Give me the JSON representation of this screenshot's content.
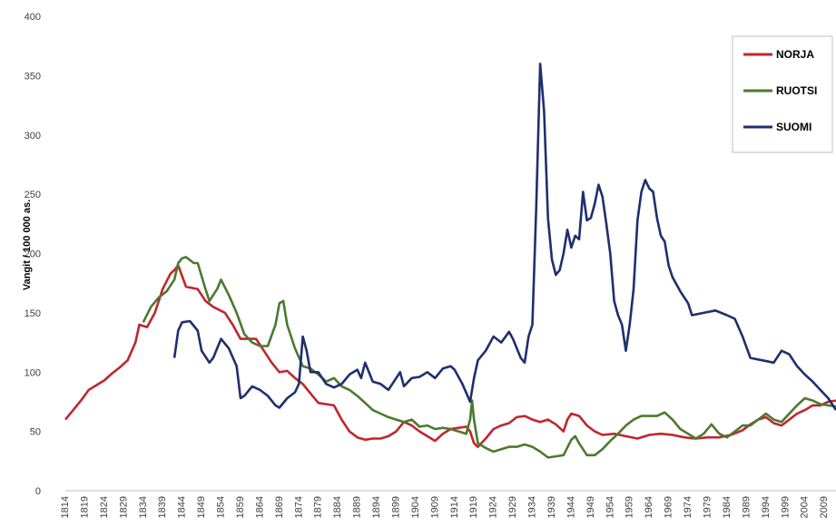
{
  "chart_data": {
    "type": "line",
    "ylabel": "Vangit / 100 000 as.",
    "xlabel": "",
    "ylim": [
      0,
      400
    ],
    "yticks": [
      0,
      50,
      100,
      150,
      200,
      250,
      300,
      350,
      400
    ],
    "xlim": [
      1814,
      2012
    ],
    "xticks": [
      1814,
      1819,
      1824,
      1829,
      1834,
      1839,
      1844,
      1849,
      1854,
      1859,
      1864,
      1869,
      1874,
      1879,
      1884,
      1889,
      1894,
      1899,
      1904,
      1909,
      1914,
      1919,
      1924,
      1929,
      1934,
      1939,
      1944,
      1949,
      1954,
      1959,
      1964,
      1969,
      1974,
      1979,
      1984,
      1989,
      1994,
      1999,
      2004,
      2009
    ],
    "grid": false,
    "legend_position": "top-right",
    "series": [
      {
        "name": "NORJA",
        "color": "#c0262d",
        "points": [
          [
            1814,
            60
          ],
          [
            1816,
            68
          ],
          [
            1818,
            76
          ],
          [
            1820,
            85
          ],
          [
            1822,
            89
          ],
          [
            1824,
            93
          ],
          [
            1826,
            99
          ],
          [
            1828,
            104
          ],
          [
            1830,
            110
          ],
          [
            1832,
            125
          ],
          [
            1833,
            140
          ],
          [
            1835,
            138
          ],
          [
            1837,
            150
          ],
          [
            1839,
            170
          ],
          [
            1841,
            183
          ],
          [
            1842,
            186
          ],
          [
            1843,
            190
          ],
          [
            1845,
            172
          ],
          [
            1848,
            170
          ],
          [
            1850,
            160
          ],
          [
            1852,
            155
          ],
          [
            1855,
            150
          ],
          [
            1857,
            140
          ],
          [
            1859,
            128
          ],
          [
            1861,
            128
          ],
          [
            1863,
            128
          ],
          [
            1865,
            118
          ],
          [
            1867,
            108
          ],
          [
            1869,
            100
          ],
          [
            1871,
            101
          ],
          [
            1873,
            95
          ],
          [
            1875,
            90
          ],
          [
            1877,
            82
          ],
          [
            1879,
            74
          ],
          [
            1881,
            73
          ],
          [
            1883,
            72
          ],
          [
            1885,
            60
          ],
          [
            1887,
            50
          ],
          [
            1889,
            45
          ],
          [
            1891,
            43
          ],
          [
            1893,
            44
          ],
          [
            1895,
            44
          ],
          [
            1897,
            46
          ],
          [
            1899,
            50
          ],
          [
            1901,
            58
          ],
          [
            1903,
            55
          ],
          [
            1905,
            50
          ],
          [
            1907,
            46
          ],
          [
            1909,
            42
          ],
          [
            1911,
            48
          ],
          [
            1913,
            52
          ],
          [
            1915,
            53
          ],
          [
            1917,
            54
          ],
          [
            1918,
            50
          ],
          [
            1919,
            40
          ],
          [
            1920,
            37
          ],
          [
            1922,
            44
          ],
          [
            1924,
            52
          ],
          [
            1926,
            55
          ],
          [
            1928,
            57
          ],
          [
            1930,
            62
          ],
          [
            1932,
            63
          ],
          [
            1934,
            60
          ],
          [
            1936,
            58
          ],
          [
            1938,
            60
          ],
          [
            1940,
            56
          ],
          [
            1942,
            50
          ],
          [
            1943,
            60
          ],
          [
            1944,
            65
          ],
          [
            1946,
            63
          ],
          [
            1948,
            55
          ],
          [
            1950,
            50
          ],
          [
            1952,
            47
          ],
          [
            1955,
            48
          ],
          [
            1958,
            46
          ],
          [
            1961,
            44
          ],
          [
            1964,
            47
          ],
          [
            1967,
            48
          ],
          [
            1970,
            47
          ],
          [
            1973,
            45
          ],
          [
            1976,
            44
          ],
          [
            1979,
            45
          ],
          [
            1982,
            45
          ],
          [
            1985,
            47
          ],
          [
            1988,
            51
          ],
          [
            1990,
            56
          ],
          [
            1992,
            60
          ],
          [
            1994,
            62
          ],
          [
            1996,
            57
          ],
          [
            1998,
            55
          ],
          [
            2000,
            60
          ],
          [
            2002,
            65
          ],
          [
            2004,
            68
          ],
          [
            2006,
            72
          ],
          [
            2008,
            72
          ],
          [
            2010,
            75
          ],
          [
            2012,
            76
          ]
        ]
      },
      {
        "name": "RUOTSI",
        "color": "#4a7a2e",
        "points": [
          [
            1834,
            142
          ],
          [
            1836,
            155
          ],
          [
            1838,
            163
          ],
          [
            1840,
            168
          ],
          [
            1842,
            178
          ],
          [
            1843,
            192
          ],
          [
            1844,
            196
          ],
          [
            1845,
            197
          ],
          [
            1847,
            192
          ],
          [
            1848,
            192
          ],
          [
            1850,
            170
          ],
          [
            1851,
            160
          ],
          [
            1853,
            170
          ],
          [
            1854,
            178
          ],
          [
            1856,
            165
          ],
          [
            1858,
            150
          ],
          [
            1860,
            132
          ],
          [
            1862,
            125
          ],
          [
            1864,
            122
          ],
          [
            1866,
            122
          ],
          [
            1868,
            140
          ],
          [
            1869,
            158
          ],
          [
            1870,
            160
          ],
          [
            1871,
            140
          ],
          [
            1873,
            120
          ],
          [
            1875,
            105
          ],
          [
            1877,
            103
          ],
          [
            1879,
            98
          ],
          [
            1881,
            92
          ],
          [
            1883,
            95
          ],
          [
            1885,
            88
          ],
          [
            1887,
            85
          ],
          [
            1889,
            80
          ],
          [
            1891,
            74
          ],
          [
            1893,
            68
          ],
          [
            1895,
            65
          ],
          [
            1897,
            62
          ],
          [
            1899,
            60
          ],
          [
            1901,
            58
          ],
          [
            1903,
            60
          ],
          [
            1905,
            54
          ],
          [
            1907,
            55
          ],
          [
            1909,
            52
          ],
          [
            1911,
            53
          ],
          [
            1913,
            52
          ],
          [
            1915,
            50
          ],
          [
            1917,
            48
          ],
          [
            1918,
            60
          ],
          [
            1918.5,
            76
          ],
          [
            1919,
            60
          ],
          [
            1920,
            40
          ],
          [
            1922,
            36
          ],
          [
            1924,
            33
          ],
          [
            1926,
            35
          ],
          [
            1928,
            37
          ],
          [
            1930,
            37
          ],
          [
            1932,
            39
          ],
          [
            1934,
            37
          ],
          [
            1936,
            33
          ],
          [
            1938,
            28
          ],
          [
            1940,
            29
          ],
          [
            1942,
            30
          ],
          [
            1944,
            43
          ],
          [
            1945,
            46
          ],
          [
            1946,
            40
          ],
          [
            1948,
            30
          ],
          [
            1950,
            30
          ],
          [
            1952,
            35
          ],
          [
            1954,
            42
          ],
          [
            1956,
            48
          ],
          [
            1958,
            55
          ],
          [
            1960,
            60
          ],
          [
            1962,
            63
          ],
          [
            1964,
            63
          ],
          [
            1966,
            63
          ],
          [
            1968,
            66
          ],
          [
            1970,
            60
          ],
          [
            1972,
            52
          ],
          [
            1974,
            48
          ],
          [
            1976,
            44
          ],
          [
            1978,
            48
          ],
          [
            1980,
            56
          ],
          [
            1982,
            48
          ],
          [
            1984,
            45
          ],
          [
            1986,
            50
          ],
          [
            1988,
            55
          ],
          [
            1990,
            55
          ],
          [
            1992,
            60
          ],
          [
            1994,
            65
          ],
          [
            1996,
            60
          ],
          [
            1998,
            58
          ],
          [
            2000,
            65
          ],
          [
            2002,
            72
          ],
          [
            2004,
            78
          ],
          [
            2006,
            76
          ],
          [
            2008,
            73
          ],
          [
            2010,
            72
          ],
          [
            2012,
            71
          ]
        ]
      },
      {
        "name": "SUOMI",
        "color": "#1f2f6e",
        "points": [
          [
            1842,
            112
          ],
          [
            1843,
            135
          ],
          [
            1844,
            142
          ],
          [
            1846,
            143
          ],
          [
            1848,
            135
          ],
          [
            1849,
            118
          ],
          [
            1851,
            108
          ],
          [
            1852,
            112
          ],
          [
            1854,
            128
          ],
          [
            1856,
            120
          ],
          [
            1858,
            105
          ],
          [
            1859,
            78
          ],
          [
            1860,
            80
          ],
          [
            1862,
            88
          ],
          [
            1864,
            85
          ],
          [
            1866,
            80
          ],
          [
            1868,
            72
          ],
          [
            1869,
            70
          ],
          [
            1871,
            78
          ],
          [
            1873,
            83
          ],
          [
            1874,
            90
          ],
          [
            1875,
            130
          ],
          [
            1876,
            118
          ],
          [
            1877,
            100
          ],
          [
            1879,
            100
          ],
          [
            1881,
            90
          ],
          [
            1883,
            87
          ],
          [
            1885,
            90
          ],
          [
            1887,
            98
          ],
          [
            1889,
            102
          ],
          [
            1890,
            95
          ],
          [
            1891,
            108
          ],
          [
            1893,
            92
          ],
          [
            1895,
            90
          ],
          [
            1897,
            85
          ],
          [
            1899,
            95
          ],
          [
            1900,
            100
          ],
          [
            1901,
            88
          ],
          [
            1903,
            95
          ],
          [
            1905,
            96
          ],
          [
            1907,
            100
          ],
          [
            1909,
            95
          ],
          [
            1911,
            103
          ],
          [
            1913,
            105
          ],
          [
            1914,
            102
          ],
          [
            1916,
            90
          ],
          [
            1918,
            75
          ],
          [
            1919,
            95
          ],
          [
            1920,
            110
          ],
          [
            1922,
            118
          ],
          [
            1924,
            130
          ],
          [
            1926,
            125
          ],
          [
            1928,
            134
          ],
          [
            1929,
            128
          ],
          [
            1931,
            112
          ],
          [
            1932,
            108
          ],
          [
            1933,
            130
          ],
          [
            1934,
            140
          ],
          [
            1935,
            240
          ],
          [
            1936,
            360
          ],
          [
            1937,
            320
          ],
          [
            1938,
            230
          ],
          [
            1939,
            195
          ],
          [
            1940,
            182
          ],
          [
            1941,
            186
          ],
          [
            1942,
            200
          ],
          [
            1943,
            220
          ],
          [
            1944,
            205
          ],
          [
            1945,
            215
          ],
          [
            1946,
            212
          ],
          [
            1947,
            252
          ],
          [
            1948,
            228
          ],
          [
            1949,
            230
          ],
          [
            1950,
            242
          ],
          [
            1951,
            258
          ],
          [
            1952,
            248
          ],
          [
            1953,
            225
          ],
          [
            1954,
            200
          ],
          [
            1955,
            160
          ],
          [
            1956,
            148
          ],
          [
            1957,
            140
          ],
          [
            1958,
            118
          ],
          [
            1959,
            140
          ],
          [
            1960,
            170
          ],
          [
            1961,
            228
          ],
          [
            1962,
            252
          ],
          [
            1963,
            262
          ],
          [
            1964,
            255
          ],
          [
            1965,
            252
          ],
          [
            1966,
            230
          ],
          [
            1967,
            215
          ],
          [
            1968,
            210
          ],
          [
            1969,
            190
          ],
          [
            1970,
            180
          ],
          [
            1972,
            168
          ],
          [
            1974,
            158
          ],
          [
            1975,
            148
          ],
          [
            1978,
            150
          ],
          [
            1981,
            152
          ],
          [
            1984,
            148
          ],
          [
            1986,
            145
          ],
          [
            1988,
            130
          ],
          [
            1990,
            112
          ],
          [
            1993,
            110
          ],
          [
            1996,
            108
          ],
          [
            1998,
            118
          ],
          [
            2000,
            115
          ],
          [
            2002,
            105
          ],
          [
            2004,
            98
          ],
          [
            2006,
            92
          ],
          [
            2008,
            85
          ],
          [
            2010,
            78
          ],
          [
            2012,
            68
          ]
        ]
      }
    ]
  }
}
